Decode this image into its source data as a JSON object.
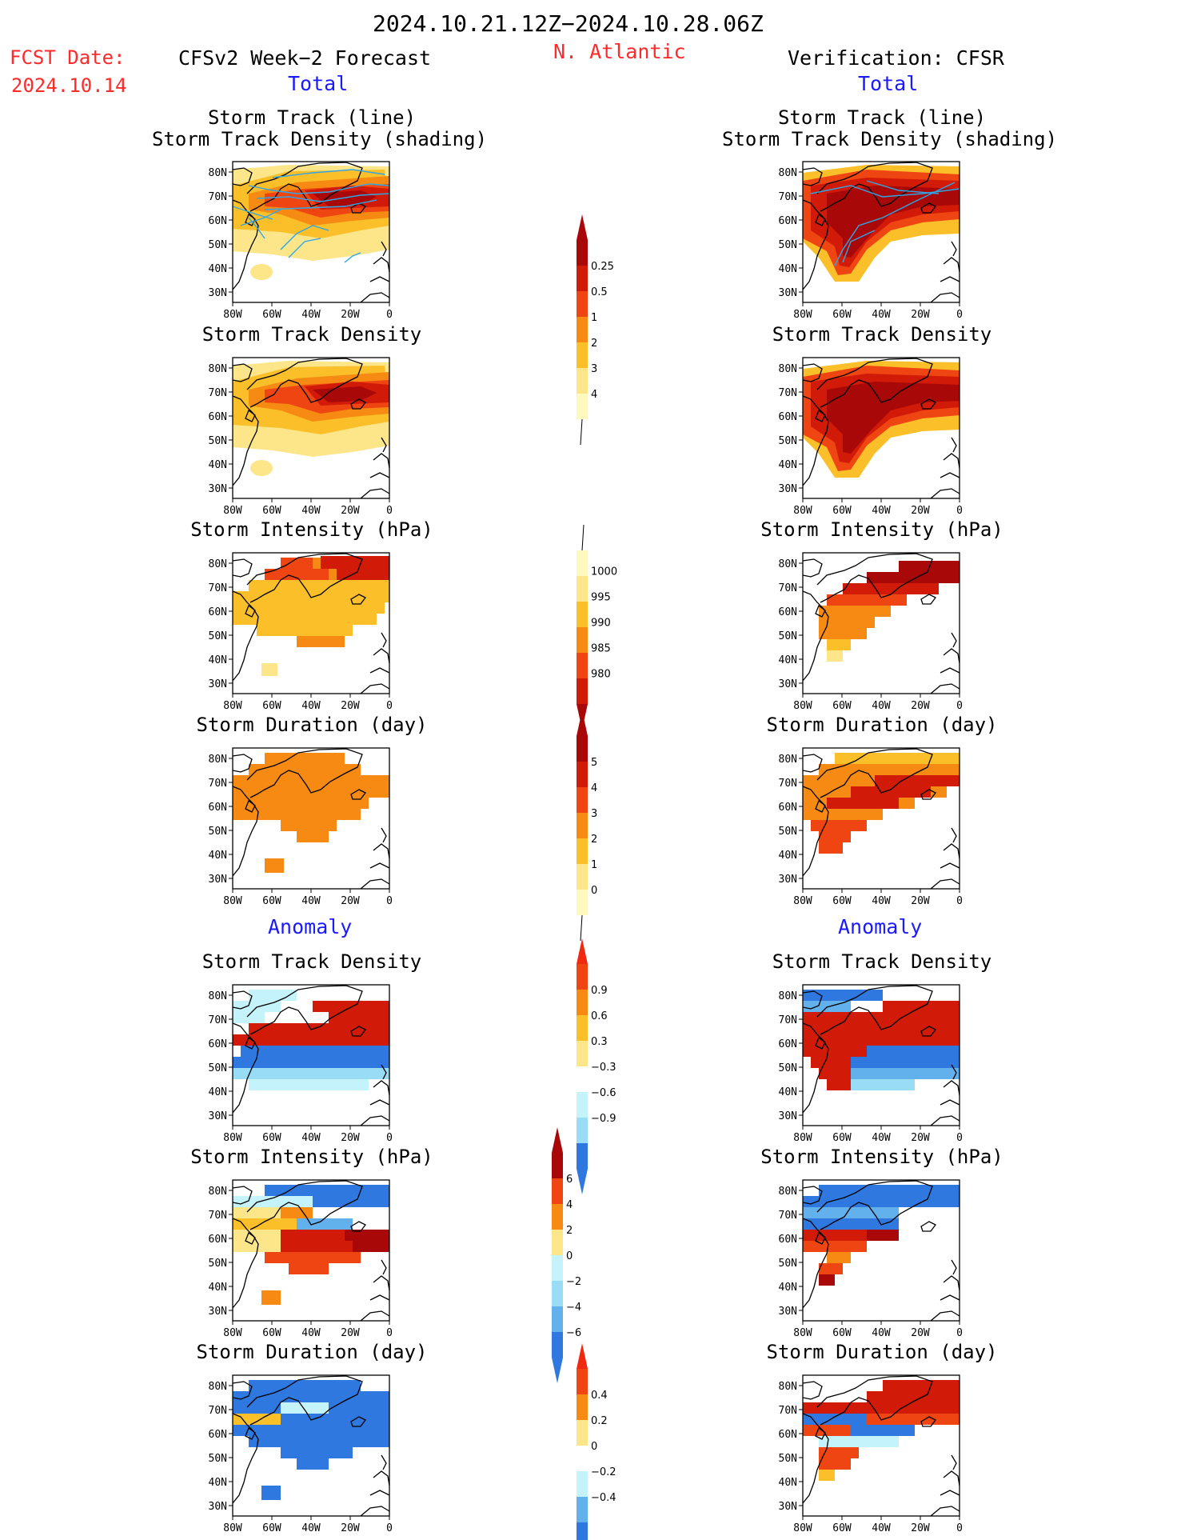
{
  "header": {
    "period": "2024.10.21.12Z−2024.10.28.06Z",
    "region": "N. Atlantic",
    "fcst_label": "FCST Date:",
    "fcst_date": "2024.10.14",
    "left_title": "CFSv2 Week−2 Forecast",
    "right_title": "Verification: CFSR",
    "left_total": "Total",
    "right_total": "Total",
    "left_anomaly": "Anomaly",
    "right_anomaly": "Anomaly"
  },
  "titles": {
    "track_line": "Storm Track (line)",
    "track_density_shading": "Storm Track Density (shading)",
    "track_density": "Storm Track Density",
    "intensity": "Storm Intensity (hPa)",
    "duration": "Storm Duration (day)"
  },
  "axes": {
    "lat_labels": [
      "80N",
      "70N",
      "60N",
      "50N",
      "40N",
      "30N"
    ],
    "lon_labels": [
      "80W",
      "60W",
      "40W",
      "20W",
      "0"
    ]
  },
  "colors": {
    "warm": [
      "#fff9c0",
      "#fde68a",
      "#fbbf2a",
      "#f78a12",
      "#ef4512",
      "#d11a08",
      "#a80808"
    ],
    "cool": [
      "#c5f3fb",
      "#98dcf5",
      "#62b0ec",
      "#2f78e0",
      "#1a56d4"
    ],
    "track_line": "#2fa7e6"
  },
  "chart_data": [
    {
      "type": "heatmap",
      "id": "colorbar-density",
      "title": "Storm Track Density",
      "levels": [
        "0.25",
        "0.5",
        "1",
        "2",
        "3",
        "4"
      ]
    },
    {
      "type": "heatmap",
      "id": "colorbar-intensity",
      "title": "Storm Intensity (hPa)",
      "levels": [
        "1000",
        "995",
        "990",
        "985",
        "980"
      ]
    },
    {
      "type": "heatmap",
      "id": "colorbar-duration",
      "title": "Storm Duration (day)",
      "levels": [
        "5",
        "4",
        "3",
        "2",
        "1",
        "0"
      ]
    },
    {
      "type": "heatmap",
      "id": "colorbar-density-anomaly",
      "title": "Storm Track Density",
      "levels": [
        "0.9",
        "0.6",
        "0.3",
        "−0.3",
        "−0.6",
        "−0.9"
      ]
    },
    {
      "type": "heatmap",
      "id": "colorbar-intensity-anomaly",
      "title": "Storm Intensity (hPa)",
      "levels": [
        "6",
        "4",
        "2",
        "0",
        "−2",
        "−4",
        "−6"
      ]
    },
    {
      "type": "heatmap",
      "id": "colorbar-duration-anomaly",
      "title": "Storm Duration (day)",
      "levels": [
        "0.4",
        "0.2",
        "0",
        "−0.2",
        "−0.4"
      ]
    }
  ]
}
